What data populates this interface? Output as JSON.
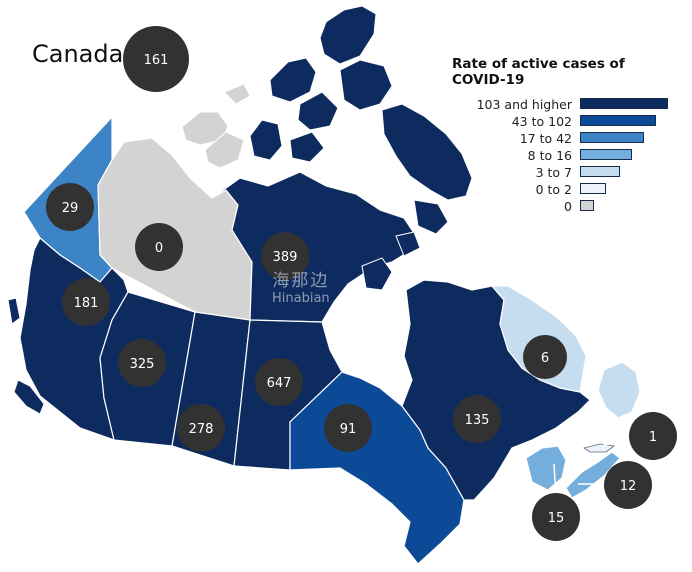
{
  "map_title": "Canada",
  "legend": {
    "title": "Rate of active cases of COVID-19",
    "title_lines": [
      "Rate of active cases of",
      "COVID-19"
    ],
    "items": [
      {
        "label": "103 and higher",
        "color": "#0d2b5e"
      },
      {
        "label": "43 to 102",
        "color": "#0c4a97"
      },
      {
        "label": "17 to 42",
        "color": "#3d84c6"
      },
      {
        "label": "8 to 16",
        "color": "#74aedc"
      },
      {
        "label": "3 to 7",
        "color": "#c5ddef"
      },
      {
        "label": "0 to 2",
        "color": "#eef3fb"
      },
      {
        "label": "0",
        "color": "#d3d3d3"
      }
    ]
  },
  "canada_total": "161",
  "regions": {
    "yt": {
      "name": "Yukon",
      "cases": "29",
      "color": "#3d84c6"
    },
    "nt": {
      "name": "Northwest Territories",
      "cases": "0",
      "color": "#d3d3d3"
    },
    "nu": {
      "name": "Nunavut",
      "cases": "389",
      "color": "#0d2b5e"
    },
    "bc": {
      "name": "British Columbia",
      "cases": "181",
      "color": "#0d2b5e"
    },
    "ab": {
      "name": "Alberta",
      "cases": "325",
      "color": "#0d2b5e"
    },
    "sk": {
      "name": "Saskatchewan",
      "cases": "278",
      "color": "#0d2b5e"
    },
    "mb": {
      "name": "Manitoba",
      "cases": "647",
      "color": "#0d2b5e"
    },
    "on": {
      "name": "Ontario",
      "cases": "91",
      "color": "#0c4a97"
    },
    "qc": {
      "name": "Quebec",
      "cases": "135",
      "color": "#0d2b5e"
    },
    "nl": {
      "name": "Newfoundland and Labrador",
      "cases": "6",
      "color": "#c5ddef"
    },
    "pe": {
      "name": "Prince Edward Island",
      "cases": "1",
      "color": "#eef3fb"
    },
    "nb": {
      "name": "New Brunswick",
      "cases": "15",
      "color": "#74aedc"
    },
    "ns": {
      "name": "Nova Scotia",
      "cases": "12",
      "color": "#74aedc"
    }
  },
  "watermark": {
    "line1": "海那边",
    "line2": "Hinabian"
  }
}
